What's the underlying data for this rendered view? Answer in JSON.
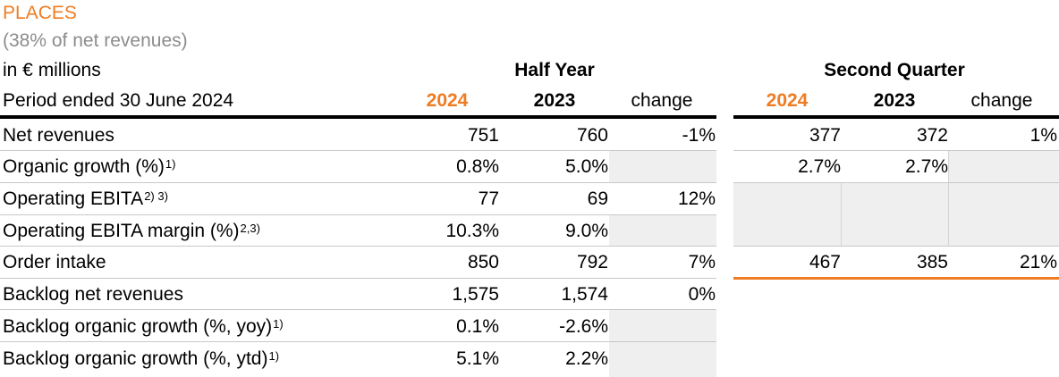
{
  "header": {
    "title": "PLACES",
    "subtitle": "(38% of net revenues)",
    "unit_label": "in € millions",
    "period_label": "Period ended 30 June 2024",
    "half_year_label": "Half Year",
    "second_quarter_label": "Second Quarter",
    "hy_cols": [
      "2024",
      "2023",
      "change"
    ],
    "q2_cols": [
      "2024",
      "2023",
      "change"
    ]
  },
  "rows": [
    {
      "label": "Net revenues",
      "sup": "",
      "hy": [
        "751",
        "760",
        "-1%"
      ],
      "q2": [
        "377",
        "372",
        "1%"
      ]
    },
    {
      "label": "Organic growth (%)",
      "sup": "1)",
      "hy": [
        "0.8%",
        "5.0%",
        ""
      ],
      "q2": [
        "2.7%",
        "2.7%",
        ""
      ]
    },
    {
      "label": "Operating EBITA",
      "sup": "2) 3)",
      "hy": [
        "77",
        "69",
        "12%"
      ],
      "q2": [
        "",
        "",
        ""
      ]
    },
    {
      "label": "Operating EBITA margin (%)",
      "sup": "2,3)",
      "hy": [
        "10.3%",
        "9.0%",
        ""
      ],
      "q2": [
        "",
        "",
        ""
      ]
    },
    {
      "label": "Order intake",
      "sup": "",
      "hy": [
        "850",
        "792",
        "7%"
      ],
      "q2": [
        "467",
        "385",
        "21%"
      ]
    },
    {
      "label": "Backlog net revenues",
      "sup": "",
      "hy": [
        "1,575",
        "1,574",
        "0%"
      ]
    },
    {
      "label": "Backlog organic growth (%, yoy)",
      "sup": "1)",
      "hy": [
        "0.1%",
        "-2.6%",
        ""
      ]
    },
    {
      "label": "Backlog organic growth (%, ytd)",
      "sup": "1)",
      "hy": [
        "5.1%",
        "2.2%",
        ""
      ]
    }
  ],
  "colors": {
    "accent": "#f07c22",
    "subtitle": "#8c8c8c",
    "shade": "#efefef"
  }
}
